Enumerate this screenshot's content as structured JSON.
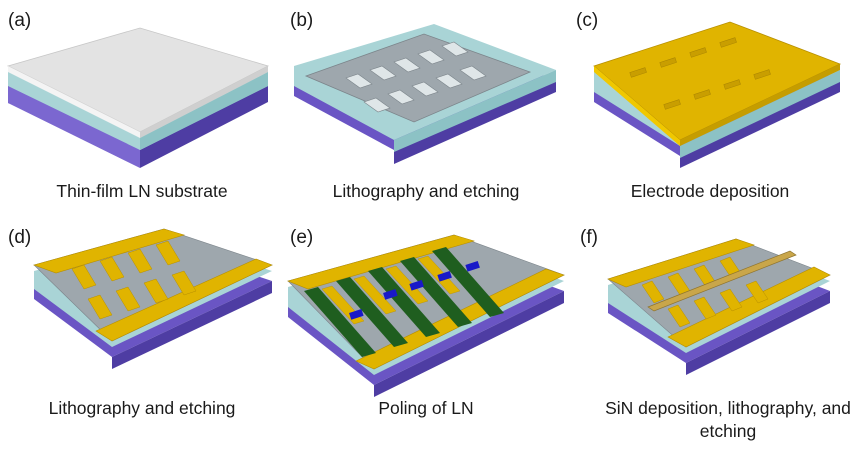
{
  "panels": [
    {
      "tag": "(a)",
      "caption": "Thin-film LN substrate"
    },
    {
      "tag": "(b)",
      "caption": "Lithography and etching"
    },
    {
      "tag": "(c)",
      "caption": "Electrode deposition"
    },
    {
      "tag": "(d)",
      "caption": "Lithography and etching"
    },
    {
      "tag": "(e)",
      "caption": "Poling of LN"
    },
    {
      "tag": "(f)",
      "caption": "SiN deposition, lithography, and etching"
    }
  ],
  "colors": {
    "ln_film": "#e3e3e3",
    "oxide": "#a9d4d6",
    "substrate": "#6a55c4",
    "etched_ln": "#9ea7ad",
    "gold": "#e0b400",
    "poled_domain": "#1f5e1f",
    "poling_mark": "#1919c8",
    "sin": "#c9a64a"
  }
}
